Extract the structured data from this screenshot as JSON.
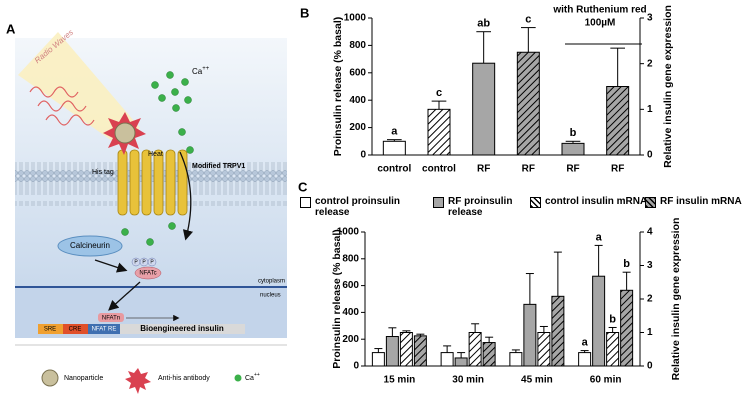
{
  "panel_a": {
    "label": "A",
    "radio_waves": "Radio Waves",
    "ion": {
      "symbol": "Ca",
      "charge": "++"
    },
    "his_tag": "His tag",
    "heat": "Heat",
    "channel": "Modified TRPV1",
    "calcineurin": "Calcineurin",
    "phosphate": "P",
    "nfatc": "NFATc",
    "cytoplasm": "cytoplasm",
    "nucleus": "nucleus",
    "nfatn": "NFATn",
    "promoter": [
      "SRE",
      "CRE",
      "NFAT RE"
    ],
    "gene": "Bioengineered insulin",
    "legend": {
      "nanoparticle": "Nanoparticle",
      "antibody": "Anti-his antibody",
      "ion_symbol": "Ca",
      "ion_charge": "++"
    }
  },
  "chart_data": [
    {
      "type": "bar",
      "panel_label": "B",
      "ylabel": "Proinsulin release (% basal)",
      "y2label": "Relative insulin gene expression",
      "categories": [
        "control",
        "control",
        "RF",
        "RF",
        "RF",
        "RF"
      ],
      "series": [
        {
          "axis": "y",
          "hatch": false,
          "colors": [
            "#ffffff",
            null,
            "#a6a6a6",
            null,
            "#a6a6a6",
            null
          ],
          "values": [
            100,
            null,
            670,
            null,
            85,
            null
          ],
          "errors": [
            12,
            null,
            230,
            null,
            15,
            null
          ]
        },
        {
          "axis": "y2",
          "hatch": true,
          "colors": [
            null,
            "#ffffff",
            null,
            "#a6a6a6",
            null,
            "#a6a6a6"
          ],
          "values": [
            null,
            1.0,
            null,
            2.25,
            null,
            1.5
          ],
          "errors": [
            null,
            0.18,
            null,
            0.54,
            null,
            0.84
          ]
        }
      ],
      "bar_labels": [
        "a",
        "c",
        "ab",
        "c",
        "b",
        null
      ],
      "annotation_lines": [
        "with Ruthenium red",
        "100µM"
      ],
      "ylim": [
        0,
        1000
      ],
      "yticks": [
        0,
        200,
        400,
        600,
        800,
        1000
      ],
      "y2lim": [
        0,
        3
      ],
      "y2ticks": [
        0,
        1,
        2,
        3
      ]
    },
    {
      "type": "bar",
      "panel_label": "C",
      "ylabel": "Proinsulin release (% basal)",
      "y2label": "Relative insulin gene expression",
      "categories": [
        "15 min",
        "30 min",
        "45 min",
        "60 min"
      ],
      "series": [
        {
          "name": "control proinsulin release",
          "axis": "y",
          "hatch": false,
          "color": "#ffffff",
          "values": [
            100,
            100,
            100,
            100
          ],
          "errors": [
            30,
            50,
            20,
            15
          ],
          "bar_labels": [
            null,
            null,
            null,
            "a"
          ]
        },
        {
          "name": "RF proinsulin release",
          "axis": "y",
          "hatch": false,
          "color": "#a6a6a6",
          "values": [
            220,
            60,
            460,
            670
          ],
          "errors": [
            65,
            40,
            230,
            230
          ],
          "bar_labels": [
            null,
            null,
            null,
            "a"
          ]
        },
        {
          "name": "control insulin mRNA",
          "axis": "y2",
          "hatch": true,
          "color": "#ffffff",
          "values": [
            1.0,
            1.0,
            1.0,
            1.0
          ],
          "errors": [
            0.05,
            0.26,
            0.18,
            0.15
          ],
          "bar_labels": [
            null,
            null,
            null,
            "b"
          ]
        },
        {
          "name": "RF insulin mRNA",
          "axis": "y2",
          "hatch": true,
          "color": "#a6a6a6",
          "values": [
            0.9,
            0.7,
            2.08,
            2.26
          ],
          "errors": [
            0.05,
            0.16,
            1.32,
            0.54
          ],
          "bar_labels": [
            null,
            null,
            null,
            "b"
          ]
        }
      ],
      "ylim": [
        0,
        1000
      ],
      "yticks": [
        0,
        200,
        400,
        600,
        800,
        1000
      ],
      "y2lim": [
        0,
        4
      ],
      "y2ticks": [
        0,
        1,
        2,
        3,
        4
      ]
    }
  ]
}
